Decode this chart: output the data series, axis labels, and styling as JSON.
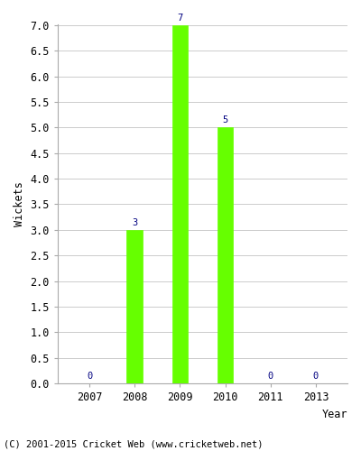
{
  "years": [
    2007,
    2008,
    2009,
    2010,
    2011,
    2013
  ],
  "wickets": [
    0,
    3,
    7,
    5,
    0,
    0
  ],
  "bar_color": "#66ff00",
  "bar_edge_color": "#66ff00",
  "label_color": "#000080",
  "ylabel": "Wickets",
  "xlabel": "Year",
  "ylim": [
    0,
    7.0
  ],
  "yticks": [
    0.0,
    0.5,
    1.0,
    1.5,
    2.0,
    2.5,
    3.0,
    3.5,
    4.0,
    4.5,
    5.0,
    5.5,
    6.0,
    6.5,
    7.0
  ],
  "footnote": "(C) 2001-2015 Cricket Web (www.cricketweb.net)",
  "background_color": "#ffffff",
  "grid_color": "#cccccc",
  "label_fontsize": 7.5,
  "axis_fontsize": 8.5,
  "footnote_fontsize": 7.5,
  "bar_width": 0.35
}
